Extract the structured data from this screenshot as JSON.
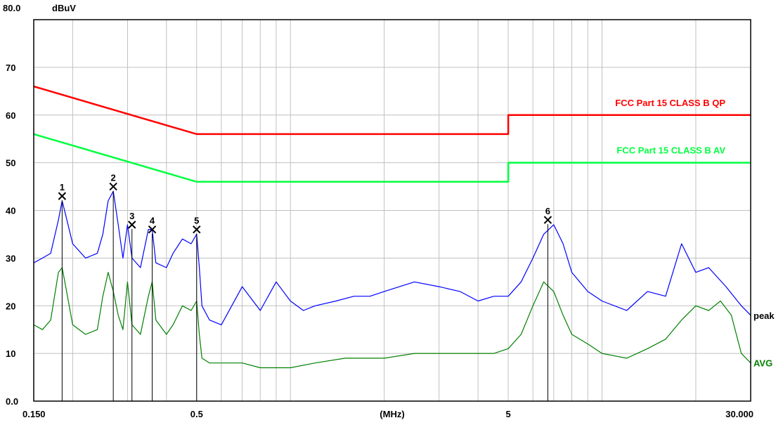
{
  "chart_data": {
    "type": "line",
    "title": "",
    "xlabel": "(MHz)",
    "ylabel": "dBuV",
    "x_scale": "log",
    "xlim": [
      0.15,
      30.0
    ],
    "ylim": [
      0,
      80
    ],
    "grid": true,
    "x_ticks": [
      {
        "value": 0.15,
        "label": "0.150"
      },
      {
        "value": 0.5,
        "label": "0.5"
      },
      {
        "value": 5,
        "label": "5"
      },
      {
        "value": 30,
        "label": "30.000"
      }
    ],
    "y_ticks": [
      {
        "value": 0,
        "label": "0.0"
      },
      {
        "value": 10,
        "label": "10"
      },
      {
        "value": 20,
        "label": "20"
      },
      {
        "value": 30,
        "label": "30"
      },
      {
        "value": 40,
        "label": "40"
      },
      {
        "value": 50,
        "label": "50"
      },
      {
        "value": 60,
        "label": "60"
      },
      {
        "value": 70,
        "label": "70"
      },
      {
        "value": 80,
        "label": "80.0"
      }
    ],
    "colors": {
      "qp_limit": "#ff0000",
      "av_limit": "#00ff40",
      "peak": "#0000ff",
      "avg": "#008000",
      "grid": "#c0c0c0",
      "marker": "#000000"
    },
    "series": [
      {
        "name": "FCC Part 15 CLASS B QP",
        "color": "#ff0000",
        "x": [
          0.15,
          0.5,
          0.5,
          5,
          5,
          30
        ],
        "y": [
          66,
          56,
          56,
          56,
          60,
          60
        ]
      },
      {
        "name": "FCC Part 15 CLASS B AV",
        "color": "#00ff40",
        "x": [
          0.15,
          0.5,
          0.5,
          5,
          5,
          30
        ],
        "y": [
          56,
          46,
          46,
          46,
          50,
          50
        ]
      },
      {
        "name": "peak",
        "color": "#0000ff",
        "x": [
          0.15,
          0.16,
          0.17,
          0.18,
          0.185,
          0.19,
          0.2,
          0.22,
          0.24,
          0.25,
          0.26,
          0.27,
          0.28,
          0.29,
          0.3,
          0.31,
          0.33,
          0.35,
          0.36,
          0.37,
          0.4,
          0.42,
          0.45,
          0.48,
          0.5,
          0.51,
          0.52,
          0.55,
          0.6,
          0.7,
          0.8,
          0.9,
          1.0,
          1.1,
          1.2,
          1.4,
          1.6,
          1.8,
          2.0,
          2.5,
          3.0,
          3.5,
          4.0,
          4.5,
          5.0,
          5.5,
          6.0,
          6.5,
          7.0,
          7.5,
          8.0,
          9.0,
          10.0,
          12.0,
          14.0,
          16.0,
          18.0,
          20.0,
          22.0,
          25.0,
          28.0,
          30.0
        ],
        "y": [
          29,
          30,
          31,
          38,
          42,
          39,
          33,
          30,
          31,
          35,
          42,
          44,
          37,
          30,
          37,
          30,
          28,
          36,
          36,
          29,
          28,
          31,
          34,
          33,
          35,
          28,
          20,
          17,
          16,
          24,
          19,
          25,
          21,
          19,
          20,
          21,
          22,
          22,
          23,
          25,
          24,
          23,
          21,
          22,
          22,
          25,
          30,
          35,
          37,
          33,
          27,
          23,
          21,
          19,
          23,
          22,
          33,
          27,
          28,
          24,
          20,
          18
        ]
      },
      {
        "name": "AVG",
        "color": "#008000",
        "x": [
          0.15,
          0.16,
          0.17,
          0.18,
          0.185,
          0.19,
          0.2,
          0.22,
          0.24,
          0.25,
          0.26,
          0.27,
          0.28,
          0.29,
          0.3,
          0.31,
          0.33,
          0.35,
          0.36,
          0.37,
          0.4,
          0.42,
          0.45,
          0.48,
          0.5,
          0.51,
          0.52,
          0.55,
          0.6,
          0.7,
          0.8,
          0.9,
          1.0,
          1.2,
          1.5,
          2.0,
          2.5,
          3.0,
          3.5,
          4.0,
          4.5,
          5.0,
          5.5,
          6.0,
          6.5,
          7.0,
          7.5,
          8.0,
          9.0,
          10.0,
          12.0,
          14.0,
          16.0,
          18.0,
          20.0,
          22.0,
          24.0,
          26.0,
          28.0,
          30.0
        ],
        "y": [
          16,
          15,
          17,
          27,
          28,
          24,
          16,
          14,
          15,
          22,
          27,
          23,
          18,
          15,
          25,
          16,
          14,
          22,
          25,
          17,
          14,
          16,
          20,
          19,
          21,
          14,
          9,
          8,
          8,
          8,
          7,
          7,
          7,
          8,
          9,
          9,
          10,
          10,
          10,
          10,
          10,
          11,
          14,
          20,
          25,
          23,
          18,
          14,
          12,
          10,
          9,
          11,
          13,
          17,
          20,
          19,
          21,
          18,
          10,
          8
        ]
      }
    ],
    "markers": [
      {
        "label": "1",
        "x": 0.185,
        "y": 43
      },
      {
        "label": "2",
        "x": 0.27,
        "y": 45
      },
      {
        "label": "3",
        "x": 0.31,
        "y": 37
      },
      {
        "label": "4",
        "x": 0.36,
        "y": 36
      },
      {
        "label": "5",
        "x": 0.5,
        "y": 36
      },
      {
        "label": "6",
        "x": 6.7,
        "y": 38
      }
    ],
    "legend_labels": {
      "qp": "FCC Part 15 CLASS B QP",
      "av": "FCC Part 15 CLASS B AV",
      "peak": "peak",
      "avg": "AVG"
    }
  }
}
